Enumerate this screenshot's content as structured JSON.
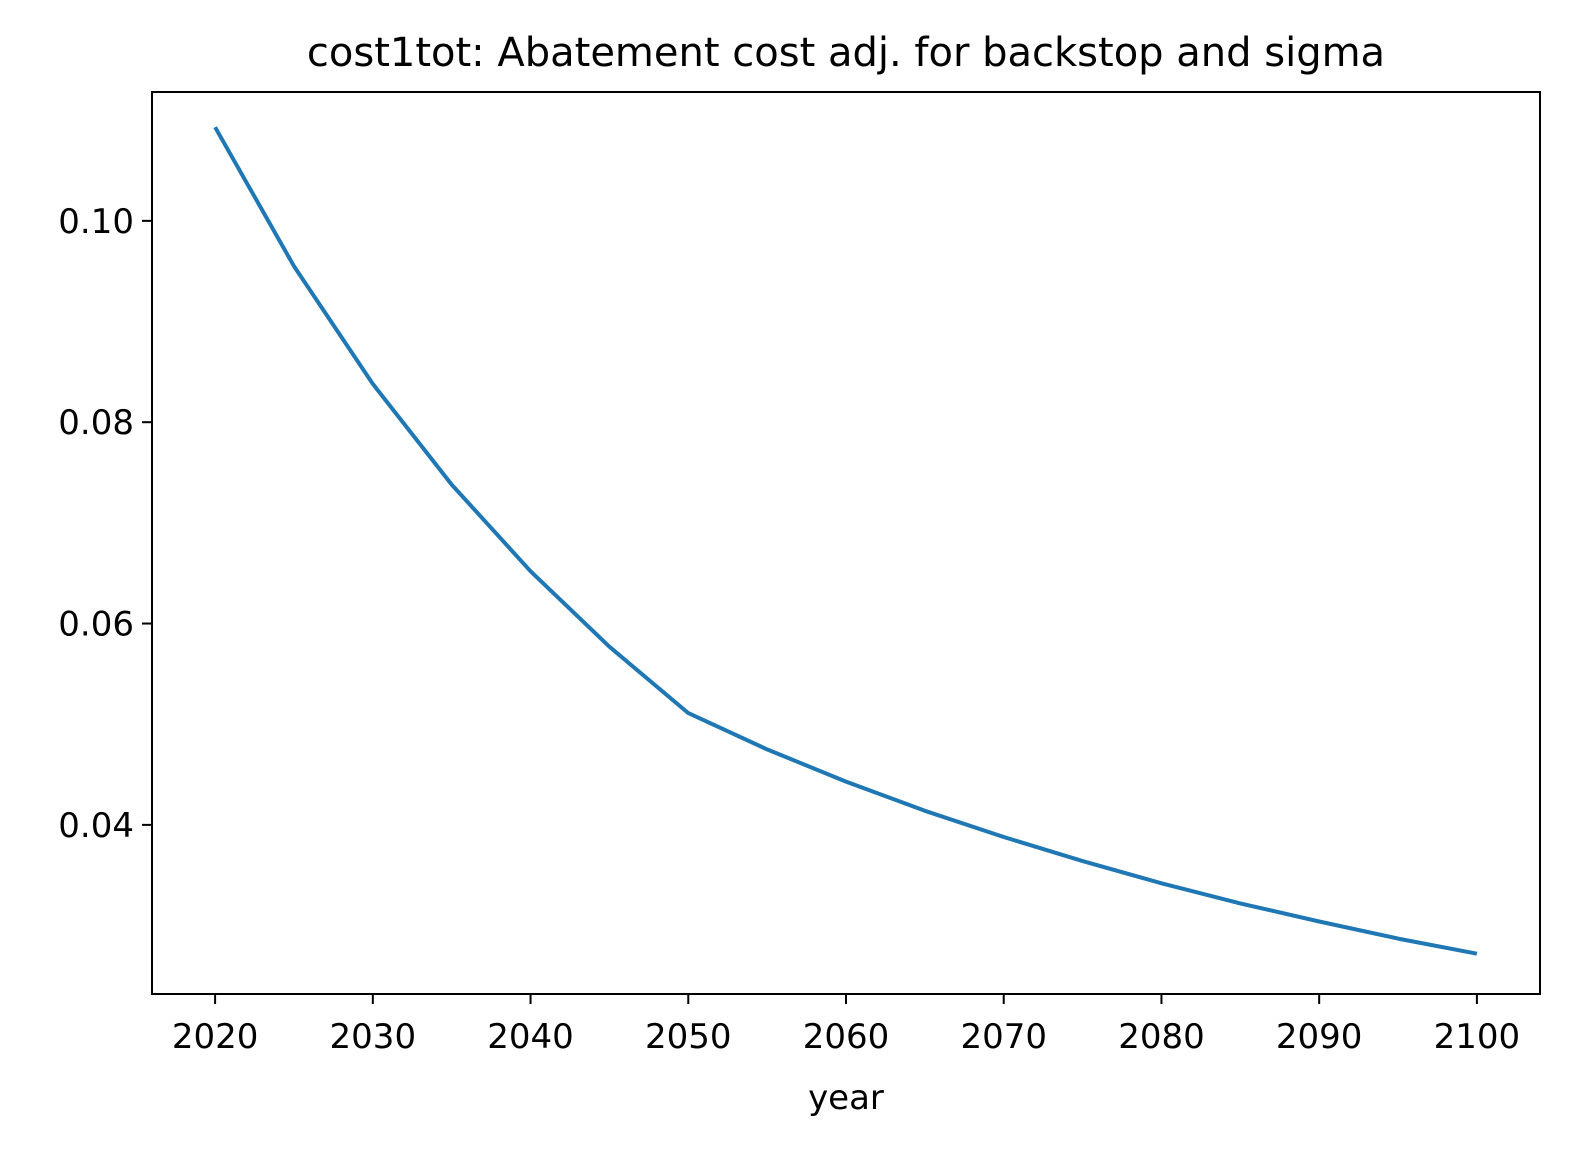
{
  "chart_data": {
    "type": "line",
    "title": "cost1tot: Abatement cost adj. for backstop and sigma",
    "xlabel": "year",
    "ylabel": "",
    "xlim": [
      2016,
      2104
    ],
    "ylim": [
      0.0232,
      0.1128
    ],
    "xticks": [
      {
        "value": 2020,
        "label": "2020"
      },
      {
        "value": 2030,
        "label": "2030"
      },
      {
        "value": 2040,
        "label": "2040"
      },
      {
        "value": 2050,
        "label": "2050"
      },
      {
        "value": 2060,
        "label": "2060"
      },
      {
        "value": 2070,
        "label": "2070"
      },
      {
        "value": 2080,
        "label": "2080"
      },
      {
        "value": 2090,
        "label": "2090"
      },
      {
        "value": 2100,
        "label": "2100"
      }
    ],
    "yticks": [
      {
        "value": 0.04,
        "label": "0.04"
      },
      {
        "value": 0.06,
        "label": "0.06"
      },
      {
        "value": 0.08,
        "label": "0.08"
      },
      {
        "value": 0.1,
        "label": "0.10"
      }
    ],
    "grid": false,
    "series": [
      {
        "color": "#1f77b4",
        "x": [
          2020,
          2025,
          2030,
          2035,
          2040,
          2045,
          2050,
          2055,
          2060,
          2065,
          2070,
          2075,
          2080,
          2085,
          2090,
          2095,
          2100
        ],
        "values": [
          0.1093,
          0.0955,
          0.0838,
          0.0738,
          0.0652,
          0.0577,
          0.0511,
          0.0475,
          0.0443,
          0.0414,
          0.0388,
          0.0364,
          0.0342,
          0.0322,
          0.0304,
          0.0287,
          0.0272
        ]
      }
    ]
  }
}
